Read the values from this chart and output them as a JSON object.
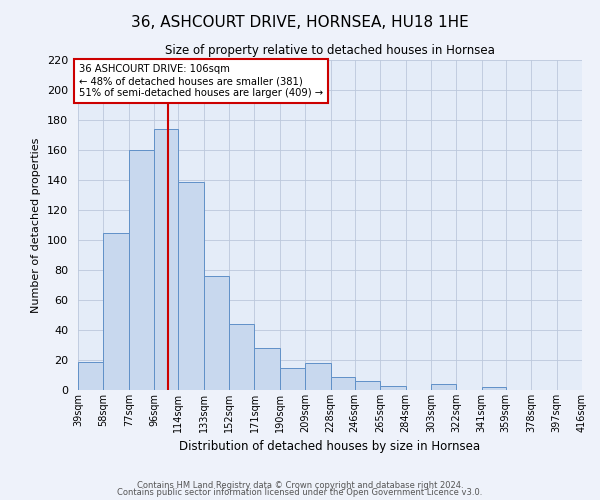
{
  "title": "36, ASHCOURT DRIVE, HORNSEA, HU18 1HE",
  "subtitle": "Size of property relative to detached houses in Hornsea",
  "xlabel": "Distribution of detached houses by size in Hornsea",
  "ylabel": "Number of detached properties",
  "bar_values": [
    19,
    105,
    160,
    174,
    139,
    76,
    44,
    28,
    15,
    18,
    9,
    6,
    3,
    0,
    4,
    0,
    2,
    0,
    0,
    0
  ],
  "bin_labels": [
    "39sqm",
    "58sqm",
    "77sqm",
    "96sqm",
    "114sqm",
    "133sqm",
    "152sqm",
    "171sqm",
    "190sqm",
    "209sqm",
    "228sqm",
    "246sqm",
    "265sqm",
    "284sqm",
    "303sqm",
    "322sqm",
    "341sqm",
    "359sqm",
    "378sqm",
    "397sqm",
    "416sqm"
  ],
  "bin_edges": [
    39,
    58,
    77,
    96,
    114,
    133,
    152,
    171,
    190,
    209,
    228,
    246,
    265,
    284,
    303,
    322,
    341,
    359,
    378,
    397,
    416
  ],
  "bar_color": "#c8d8ee",
  "bar_edge_color": "#6090c8",
  "grid_color": "#bcc8dc",
  "bg_color": "#e4ecf8",
  "fig_bg_color": "#eef2fa",
  "vline_x": 106,
  "vline_color": "#cc0000",
  "annotation_text": "36 ASHCOURT DRIVE: 106sqm\n← 48% of detached houses are smaller (381)\n51% of semi-detached houses are larger (409) →",
  "annotation_box_color": "#ffffff",
  "annotation_box_edge": "#cc0000",
  "ylim": [
    0,
    220
  ],
  "yticks": [
    0,
    20,
    40,
    60,
    80,
    100,
    120,
    140,
    160,
    180,
    200,
    220
  ],
  "footer1": "Contains HM Land Registry data © Crown copyright and database right 2024.",
  "footer2": "Contains public sector information licensed under the Open Government Licence v3.0."
}
